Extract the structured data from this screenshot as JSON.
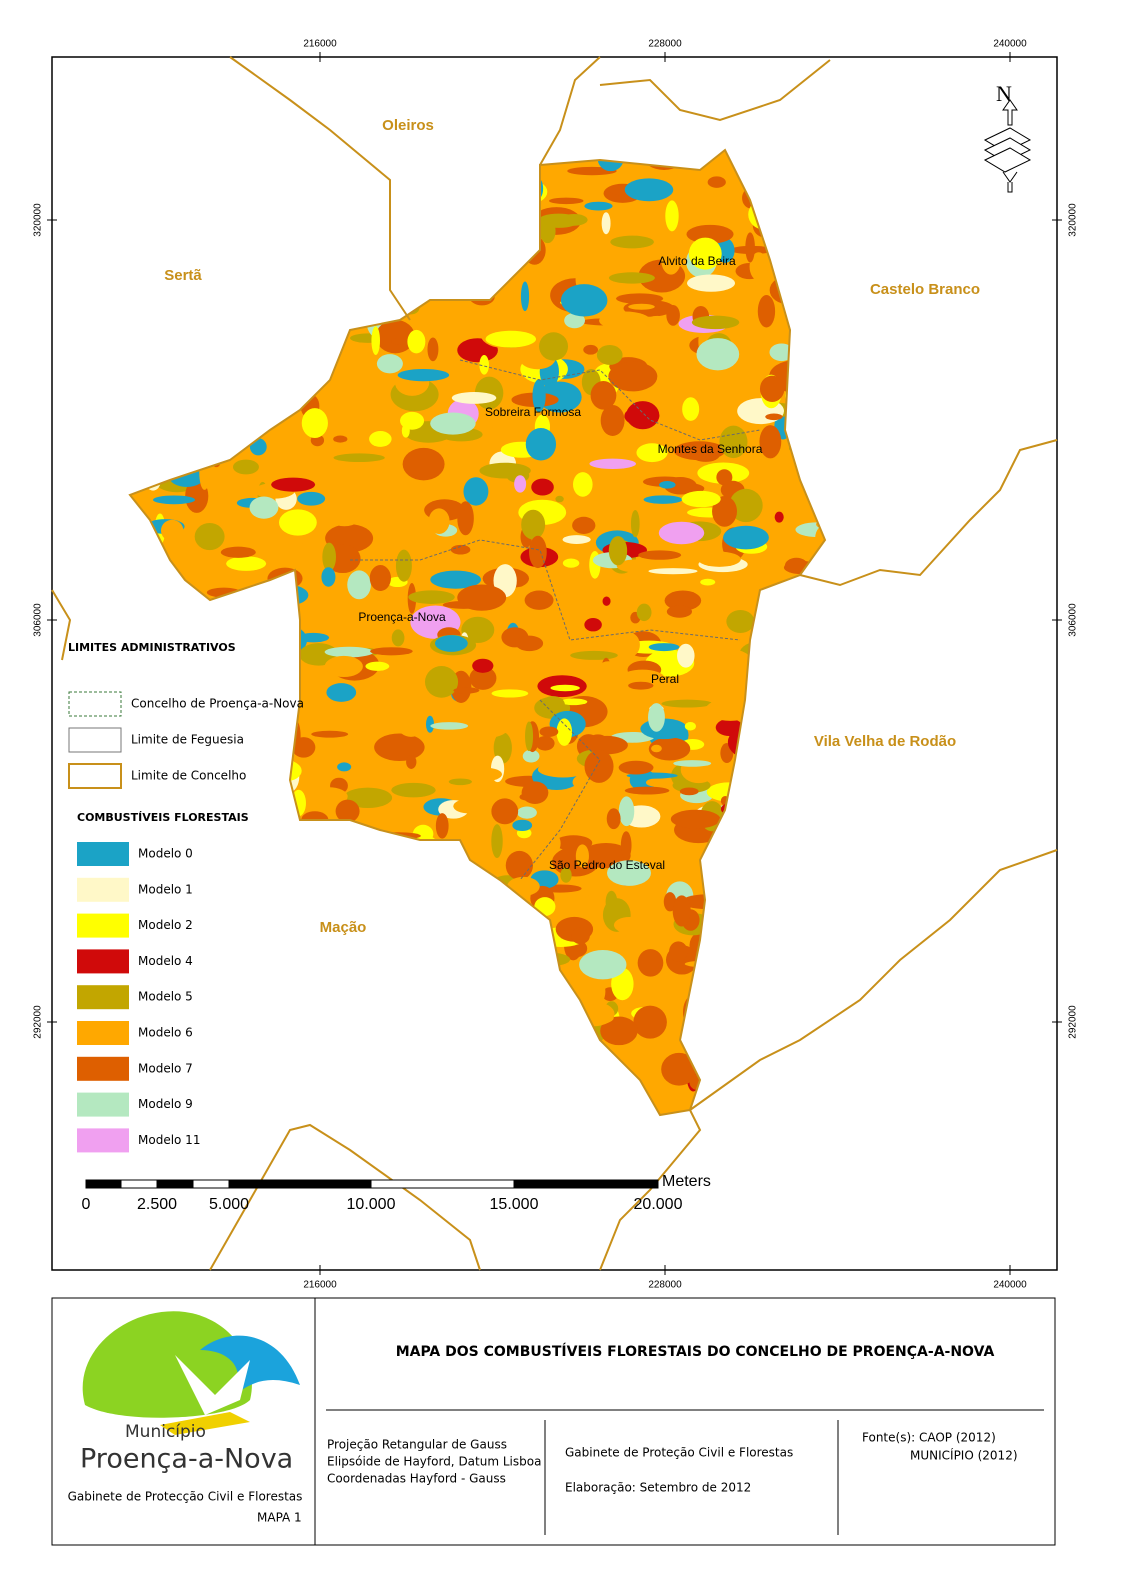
{
  "map": {
    "north": "N",
    "x_ticks": [
      "216000",
      "228000",
      "240000"
    ],
    "y_ticks": [
      "320000",
      "306000",
      "292000"
    ],
    "neighbours": [
      "Oleiros",
      "Sertã",
      "Castelo Branco",
      "Vila Velha de Rodão",
      "Mação"
    ],
    "parishes": [
      "Alvito da Beira",
      "Sobreira Formosa",
      "Montes da Senhora",
      "Proença-a-Nova",
      "Peral",
      "São Pedro do Esteval"
    ]
  },
  "legend": {
    "admin_title": "LIMITES ADMINISTRATIVOS",
    "admin_items": [
      "Concelho de Proença-a-Nova",
      "Limite de Feguesia",
      "Limite de Concelho"
    ],
    "fuel_title": "COMBUSTÍVEIS FLORESTAIS",
    "fuel_items": [
      {
        "name": "Modelo 0",
        "color": "#1ba3c6"
      },
      {
        "name": "Modelo 1",
        "color": "#fff8c8"
      },
      {
        "name": "Modelo 2",
        "color": "#ffff00"
      },
      {
        "name": "Modelo 4",
        "color": "#d00a0a"
      },
      {
        "name": "Modelo 5",
        "color": "#c2a600"
      },
      {
        "name": "Modelo 6",
        "color": "#ffa800"
      },
      {
        "name": "Modelo 7",
        "color": "#de5f00"
      },
      {
        "name": "Modelo 9",
        "color": "#b4e8c0"
      },
      {
        "name": "Modelo 11",
        "color": "#f0a0f0"
      }
    ]
  },
  "scale_bar": {
    "labels": [
      "0",
      "2.500",
      "5.000",
      "10.000",
      "15.000",
      "20.000"
    ],
    "unit": "Meters"
  },
  "footer": {
    "logo_top": "Município",
    "logo_name": "Proença-a-Nova",
    "office": "Gabinete de Protecção Civil e Florestas",
    "map_number": "MAPA 1",
    "title": "MAPA DOS COMBUSTÍVEIS FLORESTAIS DO CONCELHO DE PROENÇA-A-NOVA",
    "projection": [
      "Projeção Retangular de Gauss",
      "Elipsóide de Hayford, Datum Lisboa",
      "Coordenadas Hayford - Gauss"
    ],
    "author_office": "Gabinete de Proteção Civil e Florestas",
    "date": "Elaboração: Setembro de 2012",
    "sources": [
      "Fonte(s): CAOP (2012)",
      "MUNICÍPIO (2012)"
    ]
  }
}
